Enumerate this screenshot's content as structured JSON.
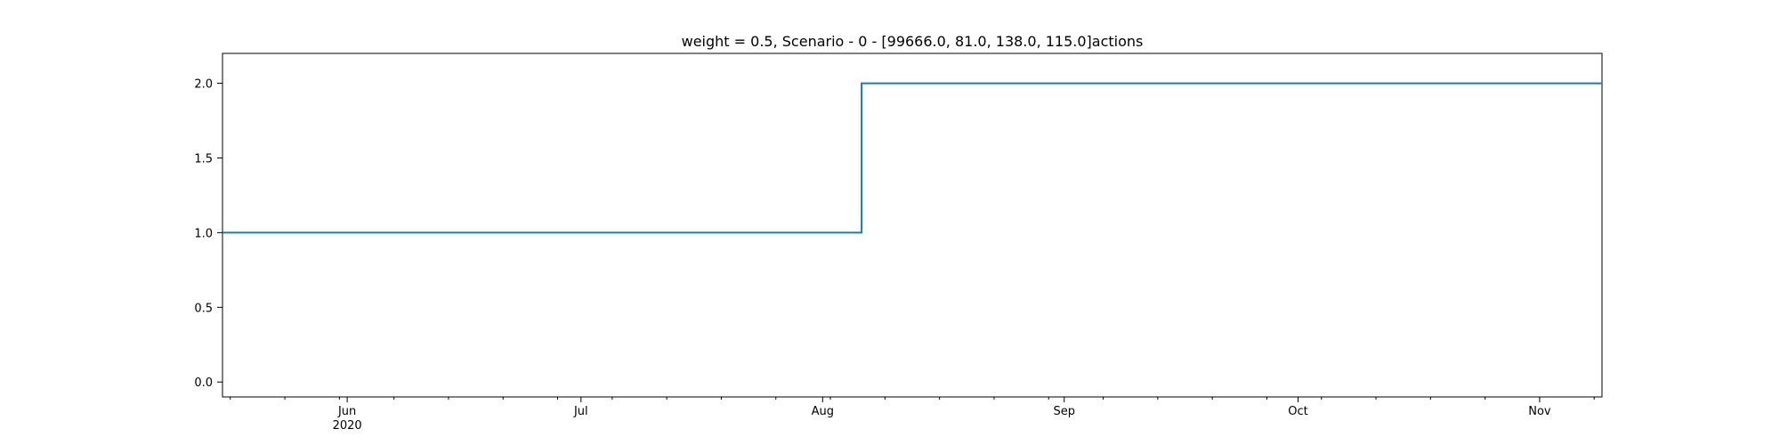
{
  "chart_data": {
    "type": "line",
    "step": "post",
    "title": "weight = 0.5, Scenario - 0 - [99666.0, 81.0, 138.0, 115.0]actions",
    "xlabel": "",
    "ylabel": "",
    "x_range": [
      "2020-05-16",
      "2020-11-09"
    ],
    "ylim": [
      -0.1,
      2.2
    ],
    "y_ticks": [
      0.0,
      0.5,
      1.0,
      1.5,
      2.0
    ],
    "y_tick_labels": [
      "0.0",
      "0.5",
      "1.0",
      "1.5",
      "2.0"
    ],
    "x_ticks": [
      {
        "date": "2020-06-01",
        "label": "Jun",
        "sublabel": "2020"
      },
      {
        "date": "2020-07-01",
        "label": "Jul",
        "sublabel": ""
      },
      {
        "date": "2020-08-01",
        "label": "Aug",
        "sublabel": ""
      },
      {
        "date": "2020-09-01",
        "label": "Sep",
        "sublabel": ""
      },
      {
        "date": "2020-10-01",
        "label": "Oct",
        "sublabel": ""
      },
      {
        "date": "2020-11-01",
        "label": "Nov",
        "sublabel": ""
      }
    ],
    "grid": false,
    "series": [
      {
        "color": "#1f77b4",
        "points": [
          {
            "x": "2020-05-16",
            "y": 1.0
          },
          {
            "x": "2020-08-06",
            "y": 2.0
          },
          {
            "x": "2020-11-09",
            "y": 2.0
          }
        ]
      }
    ]
  }
}
